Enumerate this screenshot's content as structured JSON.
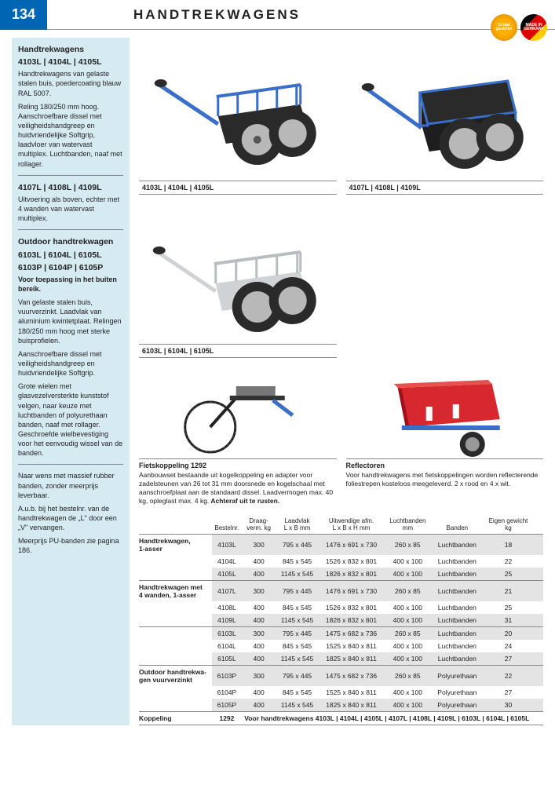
{
  "page_number": "134",
  "page_title": "HANDTREKWAGENS",
  "badges": {
    "warranty": "10 jaar garantie!",
    "made": "MADE IN GERMANY"
  },
  "sidebar": {
    "sec1": {
      "title": "Handtrekwagens",
      "models": "4103L | 4104L | 4105L",
      "p1": "Handtrekwagens van gelaste stalen buis, poedercoating blauw RAL 5007.",
      "p2": "Reling 180/250 mm hoog. Aanschroefbare dissel met veiligheidshandgreep en huidvriendelijke Softgrip, laadvloer van watervast multiplex. Luchtbanden, naaf met rollager."
    },
    "sec2": {
      "models": "4107L | 4108L | 4109L",
      "p1": "Uitvoering als boven, echter met 4 wanden van watervast multiplex."
    },
    "sec3": {
      "title": "Outdoor handtrekwagen",
      "models1": "6103L | 6104L | 6105L",
      "models2": "6103P | 6104P | 6105P",
      "bold1": "Voor toepassing in het buiten bereik.",
      "p1": "Van gelaste stalen buis, vuurverzinkt. Laadvlak van aluminium kwintetplaat. Relingen 180/250 mm hoog met sterke buisprofielen.",
      "p2": "Aanschroefbare dissel met veiligheidshandgreep en huidvriendelijke Softgrip.",
      "p3": "Grote wielen met glasvezelversterkte kunststof velgen, naar keuze met luchtbanden of polyurethaan banden, naaf met rollager. Geschroefde wielbevestiging voor het eenvoudig wissel van de banden.",
      "p4": "Naar wens met massief rubber banden, zonder meerprijs leverbaar.",
      "p5": "A.u.b. bij het bestelnr. van de handtrekwagen de „L\" door een „V\" vervangen.",
      "p6": "Meerprijs PU-banden zie pagina 186."
    }
  },
  "images": {
    "row1a": "4103L | 4104L | 4105L",
    "row1b": "4107L | 4108L | 4109L",
    "row2": "6103L | 6104L | 6105L",
    "acc1_title": "Fietskoppeling 1292",
    "acc1_text": "Aanbouwset bestaande uit kogelkoppeling en adapter voor zadelsteunen van 26 tot 31 mm doorsnede en kogelschaal met aanschroefplaat aan de standaard dissel. Laadvermogen max. 40 kg, opleglast max. 4 kg.",
    "acc1_bold": " Achteraf uit te rusten.",
    "acc2_title": "Reflectoren",
    "acc2_text": "Voor handtrekwagens met fietskoppelingen worden reflecterende foliestrepen kosteloos meegeleverd. 2 x rood en 4 x wit."
  },
  "table": {
    "headers": {
      "group": "",
      "bestelnr": "Bestelnr.",
      "draag": "Draag-\nverm. kg",
      "laadvlak": "Laadvlak\nL x B mm",
      "uitwendige": "Uitwendige afm.\nL x B x H mm",
      "luchtbanden": "Luchtbanden\nmm",
      "banden": "Banden",
      "gewicht": "Eigen gewicht\nkg"
    },
    "groups": [
      {
        "name": "Handtrekwagen,\n1-asser",
        "rows": [
          [
            "4103L",
            "300",
            "795 x 445",
            "1476 x 691 x 730",
            "260 x 85",
            "Luchtbanden",
            "18"
          ],
          [
            "4104L",
            "400",
            "845 x 545",
            "1526 x 832 x 801",
            "400 x 100",
            "Luchtbanden",
            "22"
          ],
          [
            "4105L",
            "400",
            "1145 x 545",
            "1826 x 832 x 801",
            "400 x 100",
            "Luchtbanden",
            "25"
          ]
        ]
      },
      {
        "name": "Handtrekwagen met\n4 wanden, 1-asser",
        "rows": [
          [
            "4107L",
            "300",
            "795 x 445",
            "1476 x 691 x 730",
            "260 x 85",
            "Luchtbanden",
            "21"
          ],
          [
            "4108L",
            "400",
            "845 x 545",
            "1526 x 832 x 801",
            "400 x 100",
            "Luchtbanden",
            "25"
          ],
          [
            "4109L",
            "400",
            "1145 x 545",
            "1826 x 832 x 801",
            "400 x 100",
            "Luchtbanden",
            "31"
          ]
        ]
      },
      {
        "name": "",
        "rows": [
          [
            "6103L",
            "300",
            "795 x 445",
            "1475 x 682 x 736",
            "260 x 85",
            "Luchtbanden",
            "20"
          ],
          [
            "6104L",
            "400",
            "845 x 545",
            "1525 x 840 x 811",
            "400 x 100",
            "Luchtbanden",
            "24"
          ],
          [
            "6105L",
            "400",
            "1145 x 545",
            "1825 x 840 x 811",
            "400 x 100",
            "Luchtbanden",
            "27"
          ]
        ]
      },
      {
        "name": "Outdoor handtrekwa-\ngen vuurverzinkt",
        "rows": [
          [
            "6103P",
            "300",
            "795 x 445",
            "1475 x 682 x 736",
            "260 x 85",
            "Polyurethaan",
            "22"
          ],
          [
            "6104P",
            "400",
            "845 x 545",
            "1525 x 840 x 811",
            "400 x 100",
            "Polyurethaan",
            "27"
          ],
          [
            "6105P",
            "400",
            "1145 x 545",
            "1825 x 840 x 811",
            "400 x 100",
            "Polyurethaan",
            "30"
          ]
        ]
      }
    ],
    "koppeling": {
      "label": "Koppeling",
      "nr": "1292",
      "text": "Voor handtrekwagens 4103L | 4104L | 4105L | 4107L | 4108L | 4109L | 6103L | 6104L | 6105L"
    }
  },
  "colors": {
    "brand_blue": "#0066b3",
    "sidebar_bg": "#d6eaf2",
    "alt_row": "#e4e4e4",
    "cart_blue": "#3a6fc9",
    "cart_dark": "#2a2a2a",
    "cart_grey": "#b8b8b8",
    "cart_silver": "#cfd3d6",
    "red": "#d7282f"
  }
}
